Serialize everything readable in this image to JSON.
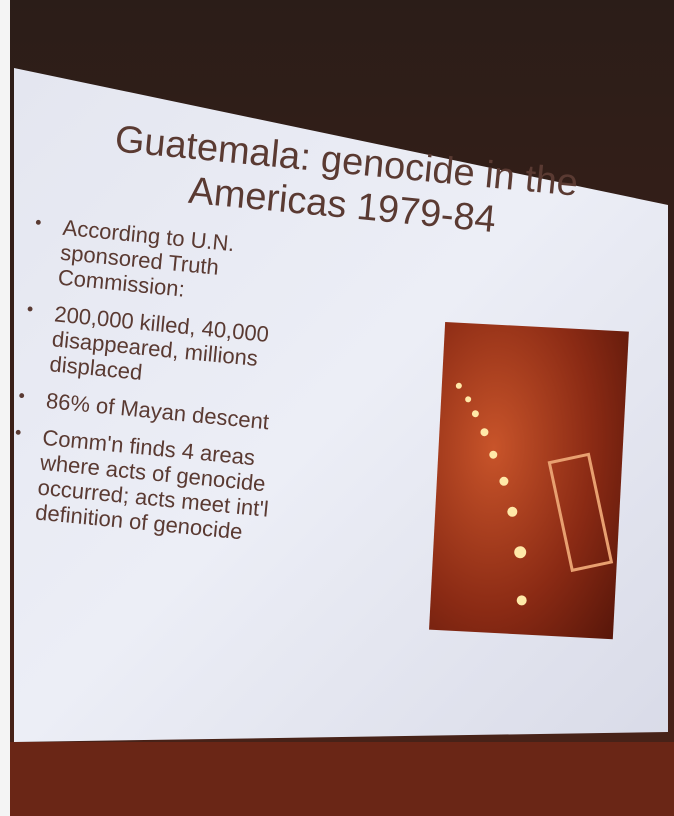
{
  "slide": {
    "title_lines": [
      "Guatemala:  genocide in the",
      "Americas 1979-84"
    ],
    "bullets": [
      "According to U.N. sponsored Truth Commission:",
      "200,000 killed, 40,000 disappeared, millions displaced",
      "86% of Mayan descent",
      "Comm'n finds 4 areas where acts of genocide occurred; acts meet int'l definition of genocide"
    ]
  }
}
